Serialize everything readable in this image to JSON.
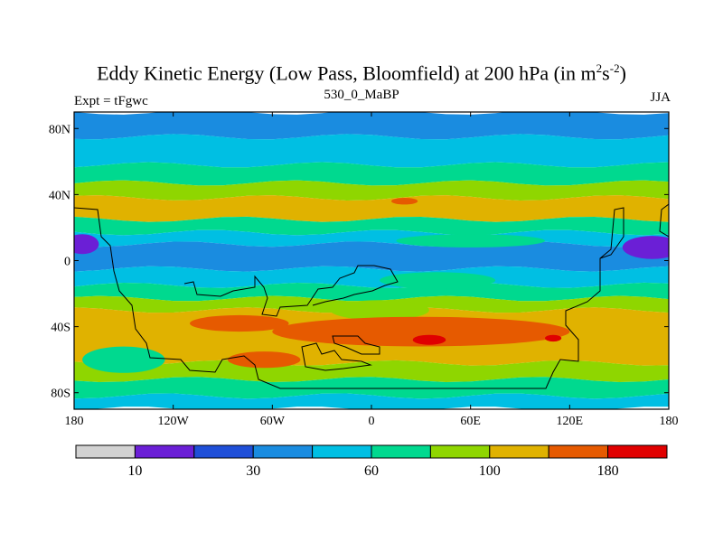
{
  "figure": {
    "title_main": "Eddy Kinetic Energy (Low Pass, Bloomfield) at 200 hPa (in m",
    "title_sup1": "2",
    "title_mid": "s",
    "title_sup2": "-2",
    "title_end": ")",
    "left_label": "Expt = tFgwc",
    "center_label": "530_0_MaBP",
    "right_label": "JJA"
  },
  "colors": {
    "levels_palette": [
      "#d2d2d2",
      "#6b1fd6",
      "#1f4fd8",
      "#1a8ce0",
      "#00bfe3",
      "#00d98f",
      "#8fd600",
      "#e0b200",
      "#e65a00",
      "#e00000"
    ]
  },
  "chart_data": {
    "type": "heatmap",
    "title": "Eddy Kinetic Energy (Low Pass, Bloomfield) at 200 hPa (in m2s-2)",
    "xlim": [
      -180,
      180
    ],
    "ylim": [
      -90,
      90
    ],
    "x_ticks": [
      {
        "value": -180,
        "label": "180"
      },
      {
        "value": -120,
        "label": "120W"
      },
      {
        "value": -60,
        "label": "60W"
      },
      {
        "value": 0,
        "label": "0"
      },
      {
        "value": 60,
        "label": "60E"
      },
      {
        "value": 120,
        "label": "120E"
      },
      {
        "value": 180,
        "label": "180"
      }
    ],
    "y_ticks": [
      {
        "value": 80,
        "label": "80N"
      },
      {
        "value": 40,
        "label": "40N"
      },
      {
        "value": 0,
        "label": "0"
      },
      {
        "value": -40,
        "label": "40S"
      },
      {
        "value": -80,
        "label": "80S"
      }
    ],
    "colorbar": {
      "bins": 10,
      "labels": [
        {
          "bin": 1,
          "label": "10"
        },
        {
          "bin": 3,
          "label": "30"
        },
        {
          "bin": 5,
          "label": "60"
        },
        {
          "bin": 7,
          "label": "100"
        },
        {
          "bin": 9,
          "label": "180"
        }
      ]
    },
    "bands": [
      {
        "lat": [
          75,
          90
        ],
        "level": 3
      },
      {
        "lat": [
          58,
          75
        ],
        "level": 4
      },
      {
        "lat": [
          47,
          58
        ],
        "level": 5
      },
      {
        "lat": [
          38,
          47
        ],
        "level": 6
      },
      {
        "lat": [
          25,
          38
        ],
        "level": 7
      },
      {
        "lat": [
          17,
          25
        ],
        "level": 5
      },
      {
        "lat": [
          10,
          17
        ],
        "level": 4
      },
      {
        "lat": [
          -5,
          10
        ],
        "level": 3
      },
      {
        "lat": [
          -15,
          -5
        ],
        "level": 4
      },
      {
        "lat": [
          -23,
          -15
        ],
        "level": 5
      },
      {
        "lat": [
          -30,
          -23
        ],
        "level": 6
      },
      {
        "lat": [
          -62,
          -30
        ],
        "level": 7
      },
      {
        "lat": [
          -72,
          -62
        ],
        "level": 6
      },
      {
        "lat": [
          -82,
          -72
        ],
        "level": 5
      },
      {
        "lat": [
          -90,
          -82
        ],
        "level": 4
      }
    ],
    "blobs": [
      {
        "lon": 20,
        "lat": 36,
        "rx": 8,
        "ry": 2,
        "level": 8
      },
      {
        "lon": -175,
        "lat": 10,
        "rx": 10,
        "ry": 6,
        "level": 1
      },
      {
        "lon": 170,
        "lat": 8,
        "rx": 18,
        "ry": 7,
        "level": 1
      },
      {
        "lon": 60,
        "lat": 12,
        "rx": 45,
        "ry": 4,
        "level": 5
      },
      {
        "lon": 40,
        "lat": -12,
        "rx": 35,
        "ry": 5,
        "level": 5
      },
      {
        "lon": 5,
        "lat": -30,
        "rx": 30,
        "ry": 6,
        "level": 6
      },
      {
        "lon": 30,
        "lat": -43,
        "rx": 90,
        "ry": 9,
        "level": 8
      },
      {
        "lon": -80,
        "lat": -38,
        "rx": 30,
        "ry": 5,
        "level": 8
      },
      {
        "lon": -65,
        "lat": -60,
        "rx": 22,
        "ry": 5,
        "level": 8
      },
      {
        "lon": 35,
        "lat": -48,
        "rx": 10,
        "ry": 3,
        "level": 9
      },
      {
        "lon": 110,
        "lat": -47,
        "rx": 5,
        "ry": 2,
        "level": 9
      },
      {
        "lon": -150,
        "lat": -60,
        "rx": 25,
        "ry": 8,
        "level": 5
      }
    ]
  }
}
